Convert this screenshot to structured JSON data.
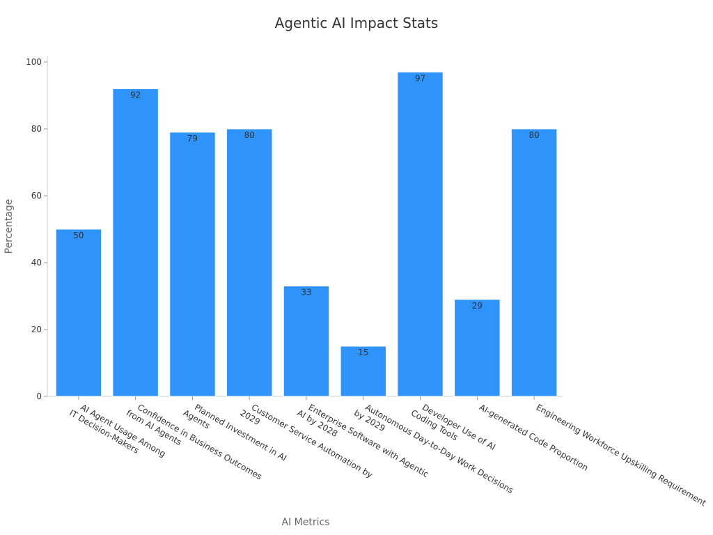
{
  "chart_data": {
    "type": "bar",
    "title": "Agentic AI Impact Stats",
    "xlabel": "AI Metrics",
    "ylabel": "Percentage",
    "ylim": [
      0,
      100
    ],
    "yticks": [
      0,
      20,
      40,
      60,
      80,
      100
    ],
    "grid": false,
    "bar_color": "#2e93fa",
    "categories": [
      [
        "AI Agent Usage Among",
        "IT Decision-Makers"
      ],
      [
        "Confidence in Business Outcomes",
        "from AI Agents"
      ],
      [
        "Planned Investment in AI",
        "Agents"
      ],
      [
        "Customer Service Automation by",
        "2029"
      ],
      [
        "Enterprise Software with Agentic",
        "AI by 2028"
      ],
      [
        "Autonomous Day-to-Day Work Decisions",
        "by 2029"
      ],
      [
        "Developer Use of AI",
        "Coding Tools"
      ],
      [
        "AI-generated Code Proportion"
      ],
      [
        "Engineering Workforce Upskilling Requirement"
      ]
    ],
    "values": [
      50,
      92,
      79,
      80,
      33,
      15,
      97,
      29,
      80
    ]
  }
}
